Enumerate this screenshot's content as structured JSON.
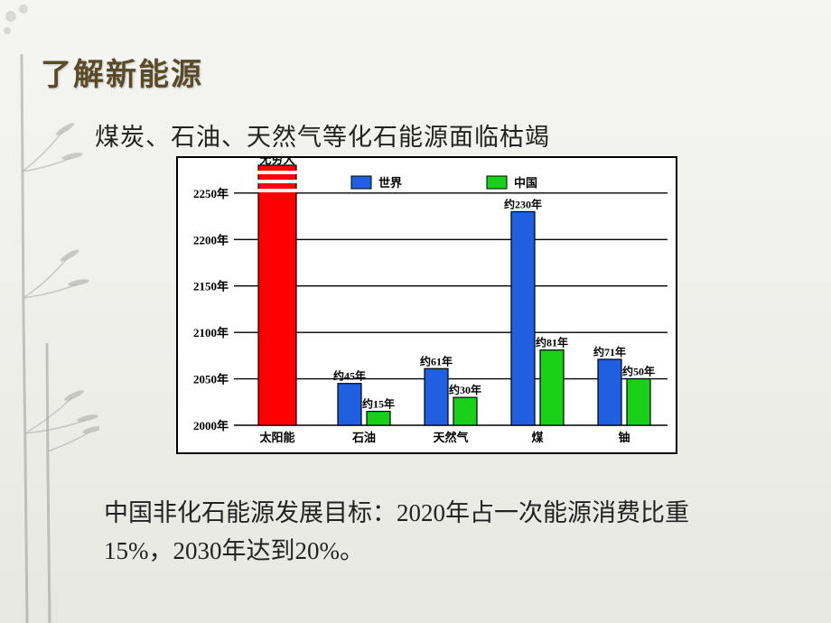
{
  "page_title": "了解新能源",
  "subtitle": "煤炭、石油、天然气等化石能源面临枯竭",
  "footer_text": "中国非化石能源发展目标：2020年占一次能源消费比重15%，2030年达到20%。",
  "chart": {
    "type": "bar",
    "y_axis": {
      "ticks": [
        2000,
        2050,
        2100,
        2150,
        2200,
        2250
      ],
      "tick_labels": [
        "2000年",
        "2050年",
        "2100年",
        "2150年",
        "2200年",
        "2250年"
      ],
      "min": 2000,
      "max": 2280,
      "grid_color": "#000000",
      "background_color": "#ffffff"
    },
    "legend": [
      {
        "label": "世界",
        "color": "#1f5fe0"
      },
      {
        "label": "中国",
        "color": "#19d019"
      }
    ],
    "infinity_label": "无穷大",
    "categories": [
      {
        "name": "太阳能",
        "special_bar": {
          "color": "#ff0000",
          "top_stripes": true,
          "value": 2280
        }
      },
      {
        "name": "石油",
        "world": {
          "value": 2045,
          "label": "约45年",
          "color": "#1f5fe0"
        },
        "china": {
          "value": 2015,
          "label": "约15年",
          "color": "#19d019"
        }
      },
      {
        "name": "天然气",
        "world": {
          "value": 2061,
          "label": "约61年",
          "color": "#1f5fe0"
        },
        "china": {
          "value": 2030,
          "label": "约30年",
          "color": "#19d019"
        }
      },
      {
        "name": "煤",
        "world": {
          "value": 2230,
          "label": "约230年",
          "color": "#1f5fe0"
        },
        "china": {
          "value": 2081,
          "label": "约81年",
          "color": "#19d019"
        }
      },
      {
        "name": "铀",
        "world": {
          "value": 2071,
          "label": "约71年",
          "color": "#1f5fe0"
        },
        "china": {
          "value": 2050,
          "label": "约50年",
          "color": "#19d019"
        }
      }
    ],
    "bar_border_color": "#000000",
    "axis_label_fontsize": 13,
    "value_label_fontsize": 12,
    "category_label_fontsize": 13,
    "legend_fontsize": 13
  },
  "decorative": {
    "bamboo_color": "#888880",
    "flower_corner_color": "#aaa"
  }
}
